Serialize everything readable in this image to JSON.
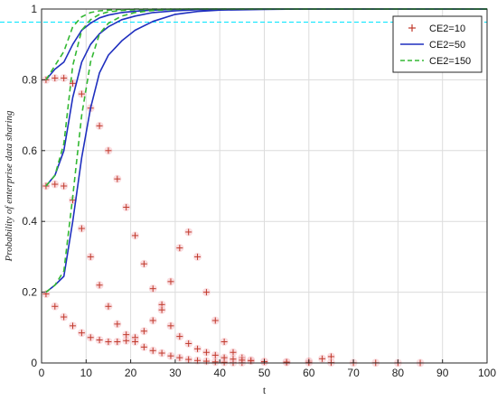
{
  "chart_data": {
    "type": "line",
    "title": "",
    "xlabel": "t",
    "ylabel": "Probability of enterprise data sharing",
    "xlim": [
      0,
      100
    ],
    "ylim": [
      0,
      1
    ],
    "xticks": [
      0,
      10,
      20,
      30,
      40,
      50,
      60,
      70,
      80,
      90,
      100
    ],
    "yticks": [
      0,
      0.2,
      0.4,
      0.6,
      0.8,
      1
    ],
    "grid": true,
    "legend_position": "top-right",
    "series": [
      {
        "name": "CE2=10",
        "style": "plus-markers",
        "color": "#c0392b",
        "curves": [
          {
            "x": [
              1,
              3,
              5,
              7,
              9,
              11,
              13,
              15,
              17,
              19,
              21,
              23,
              25,
              27,
              29,
              31,
              33,
              35,
              37,
              39,
              41,
              43,
              45,
              47,
              50,
              55,
              60,
              63,
              65
            ],
            "y": [
              0.195,
              0.16,
              0.13,
              0.105,
              0.085,
              0.072,
              0.065,
              0.06,
              0.06,
              0.063,
              0.072,
              0.09,
              0.12,
              0.165,
              0.23,
              0.325,
              0.37,
              0.3,
              0.2,
              0.12,
              0.06,
              0.03,
              0.015,
              0.008,
              0.003,
              0.003,
              0.005,
              0.012,
              0.018
            ]
          },
          {
            "x": [
              1,
              3,
              5,
              7,
              9,
              11,
              13,
              15,
              17,
              19,
              21,
              23,
              25,
              27,
              29,
              31,
              33,
              35,
              37,
              39,
              41,
              43,
              45
            ],
            "y": [
              0.5,
              0.505,
              0.5,
              0.46,
              0.38,
              0.3,
              0.22,
              0.16,
              0.11,
              0.08,
              0.06,
              0.045,
              0.035,
              0.028,
              0.02,
              0.015,
              0.01,
              0.007,
              0.005,
              0.003,
              0.002,
              0.001,
              0.001
            ]
          },
          {
            "x": [
              1,
              3,
              5,
              7,
              9,
              11,
              13,
              15,
              17,
              19,
              21,
              23,
              25,
              27,
              29,
              31,
              33,
              35,
              37,
              39,
              41,
              43,
              45,
              47,
              50,
              55,
              60,
              65,
              70,
              75,
              80,
              85
            ],
            "y": [
              0.8,
              0.805,
              0.805,
              0.79,
              0.76,
              0.72,
              0.67,
              0.6,
              0.52,
              0.44,
              0.36,
              0.28,
              0.21,
              0.15,
              0.105,
              0.075,
              0.055,
              0.04,
              0.03,
              0.022,
              0.015,
              0.011,
              0.008,
              0.006,
              0.004,
              0.002,
              0.001,
              0.001,
              0.0005,
              0.0005,
              0.0003,
              0.0002
            ]
          }
        ]
      },
      {
        "name": "CE2=50",
        "style": "solid",
        "color": "#1f2fbf",
        "curves": [
          {
            "x": [
              1,
              3,
              5,
              7,
              9,
              11,
              13,
              15,
              18,
              21,
              25,
              30,
              35,
              40,
              50,
              60,
              70,
              80,
              90,
              100
            ],
            "y": [
              0.2,
              0.22,
              0.245,
              0.4,
              0.58,
              0.72,
              0.82,
              0.87,
              0.91,
              0.94,
              0.965,
              0.985,
              0.993,
              0.997,
              0.999,
              1,
              1,
              1,
              1,
              1
            ]
          },
          {
            "x": [
              1,
              3,
              5,
              7,
              9,
              11,
              13,
              15,
              18,
              21,
              25,
              30,
              35,
              40,
              50,
              60,
              70,
              80,
              90,
              100
            ],
            "y": [
              0.5,
              0.53,
              0.6,
              0.75,
              0.85,
              0.9,
              0.93,
              0.95,
              0.97,
              0.98,
              0.99,
              0.995,
              0.998,
              0.999,
              1,
              1,
              1,
              1,
              1,
              1
            ]
          },
          {
            "x": [
              1,
              3,
              5,
              7,
              9,
              11,
              13,
              15,
              18,
              21,
              25,
              30,
              35,
              40,
              50,
              60,
              70,
              80,
              90,
              100
            ],
            "y": [
              0.8,
              0.83,
              0.85,
              0.9,
              0.94,
              0.96,
              0.975,
              0.983,
              0.99,
              0.994,
              0.997,
              0.999,
              1,
              1,
              1,
              1,
              1,
              1,
              1,
              1
            ]
          }
        ]
      },
      {
        "name": "CE2=150",
        "style": "dashed",
        "color": "#33b833",
        "curves": [
          {
            "x": [
              1,
              3,
              5,
              7,
              9,
              11,
              13,
              15,
              18,
              21,
              25,
              30,
              35,
              40,
              50,
              60,
              70,
              80,
              90,
              100
            ],
            "y": [
              0.2,
              0.22,
              0.26,
              0.47,
              0.7,
              0.85,
              0.93,
              0.96,
              0.98,
              0.99,
              0.996,
              0.999,
              1,
              1,
              1,
              1,
              1,
              1,
              1,
              1
            ]
          },
          {
            "x": [
              1,
              3,
              5,
              7,
              9,
              11,
              13,
              15,
              18,
              21,
              25,
              30,
              35,
              40,
              50,
              60,
              70,
              80,
              90,
              100
            ],
            "y": [
              0.5,
              0.53,
              0.62,
              0.84,
              0.94,
              0.97,
              0.985,
              0.992,
              0.996,
              0.998,
              0.999,
              1,
              1,
              1,
              1,
              1,
              1,
              1,
              1,
              1
            ]
          },
          {
            "x": [
              1,
              3,
              5,
              7,
              9,
              11,
              13,
              15,
              18,
              21,
              25,
              30,
              35,
              40,
              50,
              60,
              70,
              80,
              90,
              100
            ],
            "y": [
              0.8,
              0.84,
              0.88,
              0.95,
              0.978,
              0.99,
              0.995,
              0.997,
              0.999,
              1,
              1,
              1,
              1,
              1,
              1,
              1,
              1,
              1,
              1,
              1
            ]
          }
        ]
      }
    ],
    "annotations": {
      "reference_line": {
        "y": 0.963,
        "color": "#00e5ff",
        "style": "dashed"
      }
    }
  }
}
